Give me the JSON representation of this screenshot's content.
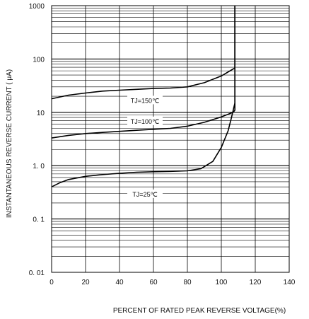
{
  "chart_data": {
    "type": "line",
    "title": "",
    "xlabel": "PERCENT OF RATED PEAK REVERSE VOLTAGE(%)",
    "ylabel": "INSTANTANEOUS REVERSE CURRENT ( μA)",
    "xlim": [
      0,
      140
    ],
    "ylim": [
      0.01,
      1000
    ],
    "y_scale": "log",
    "grid": true,
    "x_tick_labels": [
      "0",
      "20",
      "40",
      "60",
      "80",
      "100",
      "120",
      "140"
    ],
    "y_tick_labels": [
      "0. 01",
      "0. 1",
      "1. 0",
      "10",
      "100",
      "1000"
    ],
    "series": [
      {
        "name": "TJ=150℃",
        "x": [
          0,
          10,
          20,
          30,
          40,
          50,
          60,
          70,
          80,
          90,
          100,
          107,
          108,
          108
        ],
        "y": [
          18,
          21,
          23,
          25,
          26,
          27,
          28,
          28.5,
          30,
          36,
          48,
          65,
          68,
          1000
        ]
      },
      {
        "name": "TJ=100℃",
        "x": [
          0,
          10,
          20,
          30,
          40,
          50,
          60,
          70,
          80,
          90,
          100,
          107,
          108,
          108
        ],
        "y": [
          3.3,
          3.7,
          4.0,
          4.2,
          4.4,
          4.6,
          4.8,
          5.0,
          5.5,
          6.5,
          8.2,
          10,
          11,
          1000
        ]
      },
      {
        "name": "TJ=25℃",
        "x": [
          0,
          5,
          10,
          20,
          30,
          40,
          50,
          60,
          70,
          80,
          88,
          95,
          100,
          104,
          106,
          108,
          108
        ],
        "y": [
          0.4,
          0.48,
          0.55,
          0.63,
          0.68,
          0.72,
          0.75,
          0.77,
          0.78,
          0.8,
          0.88,
          1.2,
          2.2,
          4.5,
          8,
          15,
          1000
        ]
      }
    ]
  }
}
